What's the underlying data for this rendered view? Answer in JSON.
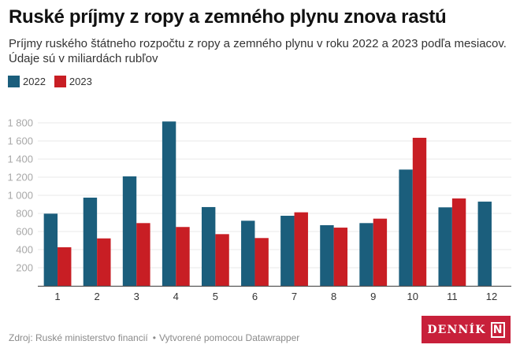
{
  "header": {
    "title": "Ruské príjmy z ropy a zemného plynu znova rastú",
    "subtitle_line1": "Príjmy ruského štátneho rozpočtu z ropy a zemného plynu v roku 2022 a 2023 podľa mesiacov.",
    "subtitle_line2": "Údaje sú v miliardách rubľov"
  },
  "legend": [
    {
      "label": "2022",
      "color": "#1b5e7c"
    },
    {
      "label": "2023",
      "color": "#c81e24"
    }
  ],
  "chart_data": {
    "type": "bar",
    "title": "Ruské príjmy z ropy a zemného plynu znova rastú",
    "xlabel": "",
    "ylabel": "",
    "categories": [
      "1",
      "2",
      "3",
      "4",
      "5",
      "6",
      "7",
      "8",
      "9",
      "10",
      "11",
      "12"
    ],
    "series": [
      {
        "name": "2022",
        "color": "#1b5e7c",
        "values": [
          797,
          974,
          1209,
          1815,
          870,
          719,
          774,
          670,
          693,
          1284,
          867,
          930
        ]
      },
      {
        "name": "2023",
        "color": "#c81e24",
        "values": [
          426,
          524,
          693,
          650,
          571,
          528,
          812,
          643,
          742,
          1635,
          965,
          null
        ]
      }
    ],
    "ylim": [
      0,
      1800
    ],
    "yticks": [
      200,
      400,
      600,
      800,
      1000,
      1200,
      1400,
      1600,
      1800
    ],
    "ytick_labels": [
      "200",
      "400",
      "600",
      "800",
      "1 000",
      "1 200",
      "1 400",
      "1 600",
      "1 800"
    ],
    "grid": true,
    "legend_position": "top-left"
  },
  "footer": {
    "source": "Zdroj: Ruské ministerstvo financií",
    "separator": "•",
    "credit": "Vytvorené pomocou Datawrapper"
  },
  "logo": {
    "text": "DENNÍK",
    "mark": "N",
    "color": "#c8203a"
  }
}
